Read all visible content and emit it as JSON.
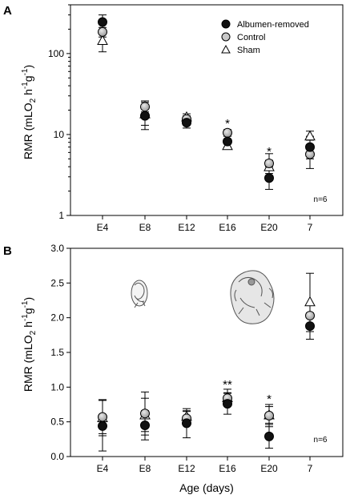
{
  "figure": {
    "xlabel": "Age (days)",
    "x_tick_labels": [
      "E4",
      "E8",
      "E12",
      "E16",
      "E20",
      "7"
    ]
  },
  "legend": {
    "items": [
      {
        "label": "Albumen-removed",
        "marker": "circle",
        "fill": "#111111"
      },
      {
        "label": "Control",
        "marker": "circle",
        "fill": "#c8c8c8"
      },
      {
        "label": "Sham",
        "marker": "triangle",
        "fill": "#ffffff"
      }
    ]
  },
  "colors": {
    "albumen_removed": "#111111",
    "control": "#c8c8c8",
    "sham": "#ffffff"
  },
  "chart_data": [
    {
      "panel_label": "A",
      "type": "scatter",
      "categories": [
        "E4",
        "E8",
        "E12",
        "E16",
        "E20",
        "7"
      ],
      "ylabel_main": "RMR (mLO",
      "ylabel_sub2": "2",
      "ylabel_h": " h",
      "ylabel_sup1": "-1",
      "ylabel_g": "g",
      "ylabel_sup2": "-1",
      "ylabel_close": ")",
      "yscale": "log",
      "ylim": [
        1,
        400
      ],
      "y_ticks": [
        1,
        10,
        100
      ],
      "y_tick_labels": [
        "1",
        "10",
        "100"
      ],
      "n_label": "n=6",
      "series": [
        {
          "name": "Albumen-removed",
          "marker": "circle",
          "color": "#111111",
          "values": [
            245,
            17,
            14,
            8.2,
            2.9,
            7.0
          ],
          "err": [
            [
              190,
              300
            ],
            [
              13,
              23
            ],
            [
              12,
              16.5
            ],
            [
              7,
              10
            ],
            [
              2.1,
              3.8
            ],
            [
              5.0,
              9.5
            ]
          ]
        },
        {
          "name": "Control",
          "marker": "circle",
          "color": "#c8c8c8",
          "values": [
            185,
            22,
            15.5,
            10.5,
            4.4,
            5.7
          ],
          "err": [
            [
              160,
              210
            ],
            [
              19,
              26
            ],
            [
              14,
              17
            ],
            [
              9.5,
              11.5
            ],
            [
              4.0,
              4.8
            ],
            [
              3.8,
              7.5
            ]
          ]
        },
        {
          "name": "Sham",
          "marker": "triangle",
          "color": "#ffffff",
          "values": [
            145,
            18,
            16.5,
            7.3,
            4.0,
            9.6
          ],
          "err": [
            [
              105,
              185
            ],
            [
              11.5,
              25
            ],
            [
              15,
              18
            ],
            [
              6.8,
              8.0
            ],
            [
              3.3,
              5.8
            ],
            [
              8.5,
              11
            ]
          ]
        }
      ],
      "annotations": [
        {
          "category": "E16",
          "text": "*",
          "y": 14
        },
        {
          "category": "E20",
          "text": "*",
          "y": 6.3
        }
      ]
    },
    {
      "panel_label": "B",
      "type": "scatter",
      "categories": [
        "E4",
        "E8",
        "E12",
        "E16",
        "E20",
        "7"
      ],
      "ylabel_main": "RMR (mLO",
      "ylabel_sub2": "2",
      "ylabel_h": " h",
      "ylabel_sup1": "-1",
      "ylabel_g": "g",
      "ylabel_sup2": "-1",
      "ylabel_close": ")",
      "yscale": "linear",
      "ylim": [
        0,
        3.0
      ],
      "y_ticks": [
        0,
        0.5,
        1.0,
        1.5,
        2.0,
        2.5,
        3.0
      ],
      "y_tick_labels": [
        "0.0",
        "0.5",
        "1.0",
        "1.5",
        "2.0",
        "2.5",
        "3.0"
      ],
      "n_label": "n=6",
      "series": [
        {
          "name": "Albumen-removed",
          "marker": "circle",
          "color": "#111111",
          "values": [
            0.44,
            0.45,
            0.48,
            0.76,
            0.29,
            1.88
          ],
          "err": [
            [
              0.08,
              0.81
            ],
            [
              0.24,
              0.66
            ],
            [
              0.27,
              0.69
            ],
            [
              0.61,
              0.91
            ],
            [
              0.12,
              0.46
            ],
            [
              1.69,
              2.07
            ]
          ]
        },
        {
          "name": "Control",
          "marker": "circle",
          "color": "#c8c8c8",
          "values": [
            0.57,
            0.62,
            0.55,
            0.84,
            0.59,
            2.03
          ],
          "err": [
            [
              0.33,
              0.81
            ],
            [
              0.31,
              0.93
            ],
            [
              0.45,
              0.65
            ],
            [
              0.74,
              0.97
            ],
            [
              0.43,
              0.75
            ],
            [
              1.88,
              2.18
            ]
          ]
        },
        {
          "name": "Sham",
          "marker": "triangle",
          "color": "#ffffff",
          "values": [
            0.56,
            0.6,
            0.58,
            0.85,
            0.6,
            2.23
          ],
          "err": [
            [
              0.3,
              0.82
            ],
            [
              0.36,
              0.84
            ],
            [
              0.5,
              0.66
            ],
            [
              0.78,
              0.92
            ],
            [
              0.48,
              0.72
            ],
            [
              1.8,
              2.64
            ]
          ]
        }
      ],
      "annotations": [
        {
          "category": "E16",
          "text": "**",
          "y": 1.05
        },
        {
          "category": "E20",
          "text": "*",
          "y": 0.84
        }
      ]
    }
  ]
}
